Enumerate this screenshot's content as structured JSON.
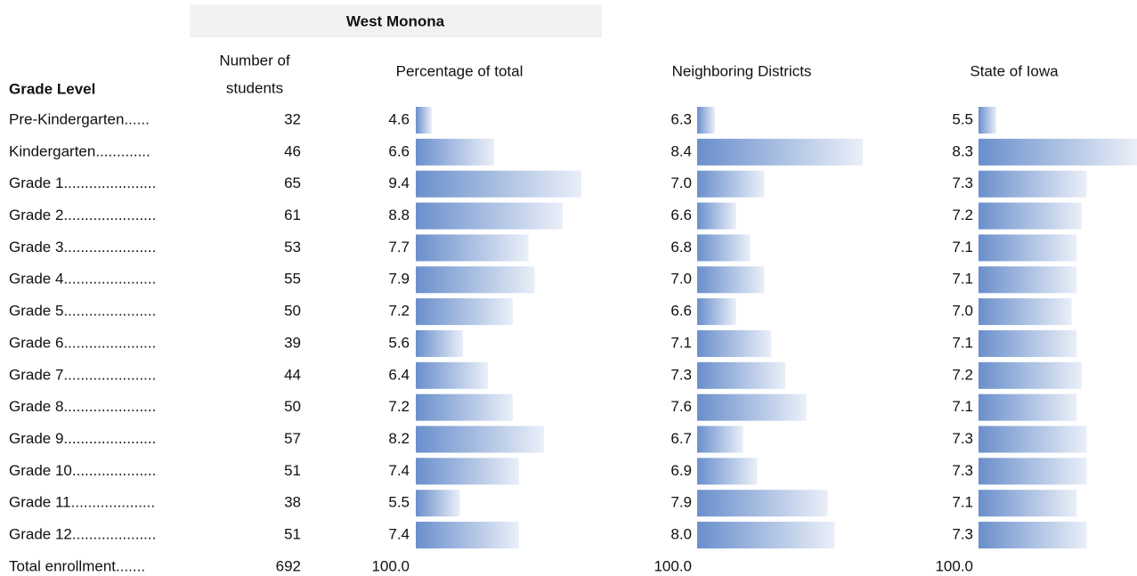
{
  "header": {
    "title": "West Monona",
    "grade_level": "Grade Level",
    "students_1": "Number of",
    "students_2": "students",
    "pct": "Percentage of total",
    "neighbor": "Neighboring Districts",
    "state": "State of Iowa"
  },
  "rows": [
    {
      "label": "Pre-Kindergarten......",
      "students": "32",
      "pct": "4.6",
      "neighbor": "6.3",
      "state": "5.5"
    },
    {
      "label": "Kindergarten.............",
      "students": "46",
      "pct": "6.6",
      "neighbor": "8.4",
      "state": "8.3"
    },
    {
      "label": "Grade 1......................",
      "students": "65",
      "pct": "9.4",
      "neighbor": "7.0",
      "state": "7.3"
    },
    {
      "label": "Grade 2......................",
      "students": "61",
      "pct": "8.8",
      "neighbor": "6.6",
      "state": "7.2"
    },
    {
      "label": "Grade 3......................",
      "students": "53",
      "pct": "7.7",
      "neighbor": "6.8",
      "state": "7.1"
    },
    {
      "label": "Grade 4......................",
      "students": "55",
      "pct": "7.9",
      "neighbor": "7.0",
      "state": "7.1"
    },
    {
      "label": "Grade 5......................",
      "students": "50",
      "pct": "7.2",
      "neighbor": "6.6",
      "state": "7.0"
    },
    {
      "label": "Grade 6......................",
      "students": "39",
      "pct": "5.6",
      "neighbor": "7.1",
      "state": "7.1"
    },
    {
      "label": "Grade 7......................",
      "students": "44",
      "pct": "6.4",
      "neighbor": "7.3",
      "state": "7.2"
    },
    {
      "label": "Grade 8......................",
      "students": "50",
      "pct": "7.2",
      "neighbor": "7.6",
      "state": "7.1"
    },
    {
      "label": "Grade 9......................",
      "students": "57",
      "pct": "8.2",
      "neighbor": "6.7",
      "state": "7.3"
    },
    {
      "label": "Grade 10....................",
      "students": "51",
      "pct": "7.4",
      "neighbor": "6.9",
      "state": "7.3"
    },
    {
      "label": "Grade 11....................",
      "students": "38",
      "pct": "5.5",
      "neighbor": "7.9",
      "state": "7.1"
    },
    {
      "label": "Grade 12....................",
      "students": "51",
      "pct": "7.4",
      "neighbor": "8.0",
      "state": "7.3"
    }
  ],
  "total": {
    "label": "Total enrollment.......",
    "students": "692",
    "pct": "100.0",
    "neighbor": "100.0",
    "state": "100.0"
  }
}
